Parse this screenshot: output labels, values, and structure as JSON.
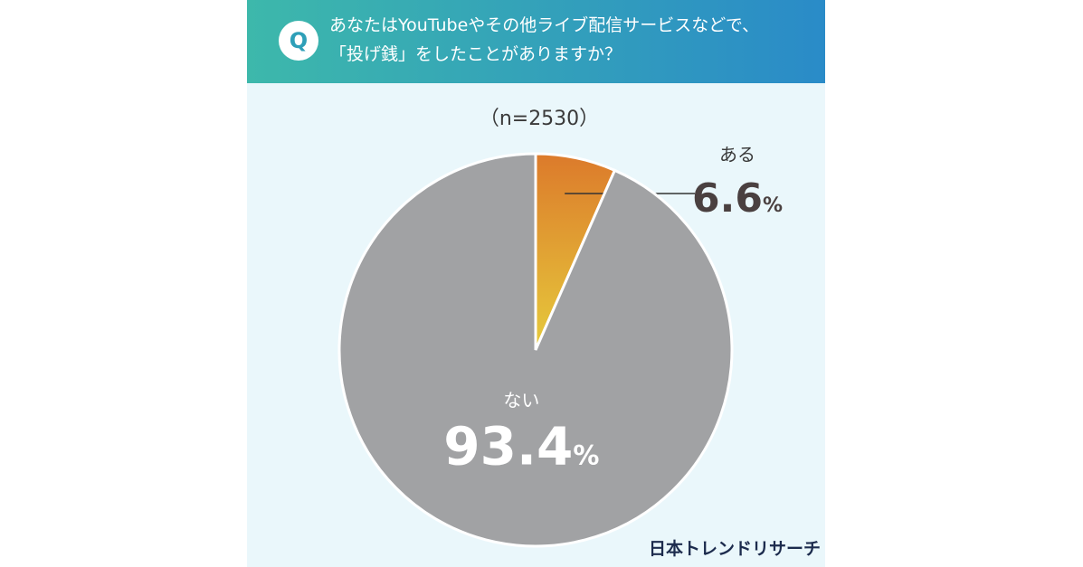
{
  "chart_data": {
    "type": "pie",
    "question_mark": "Q",
    "title_lines": [
      "あなたはYouTubeやその他ライブ配信サービスなどで、",
      "「投げ銭」をしたことがありますか？"
    ],
    "subtitle": "（n=2530）",
    "categories": [
      "ある",
      "ない"
    ],
    "values": [
      6.6,
      93.4
    ],
    "value_labels": [
      "6.6%",
      "93.4%"
    ],
    "colors": [
      {
        "from": "#dc7a2b",
        "to": "#e6cb3c"
      },
      "#a1a2a4"
    ],
    "source": "日本トレンドリサーチ"
  }
}
